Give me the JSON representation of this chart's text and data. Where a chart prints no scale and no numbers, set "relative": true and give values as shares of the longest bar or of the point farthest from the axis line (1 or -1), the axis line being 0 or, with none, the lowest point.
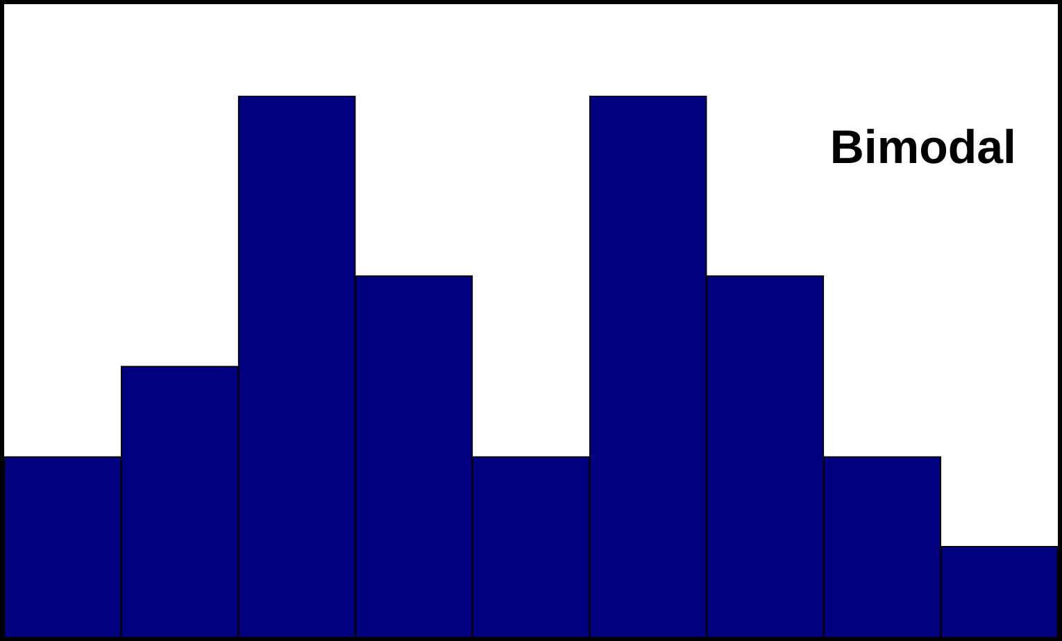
{
  "chart_data": {
    "type": "bar",
    "title": "Bimodal",
    "relative": true,
    "categories": [
      null,
      null,
      null,
      null,
      null,
      null,
      null,
      null,
      null
    ],
    "values": [
      0.333,
      0.5,
      1,
      0.667,
      0.333,
      1,
      0.667,
      0.333,
      0.167
    ],
    "color": "#000080"
  }
}
